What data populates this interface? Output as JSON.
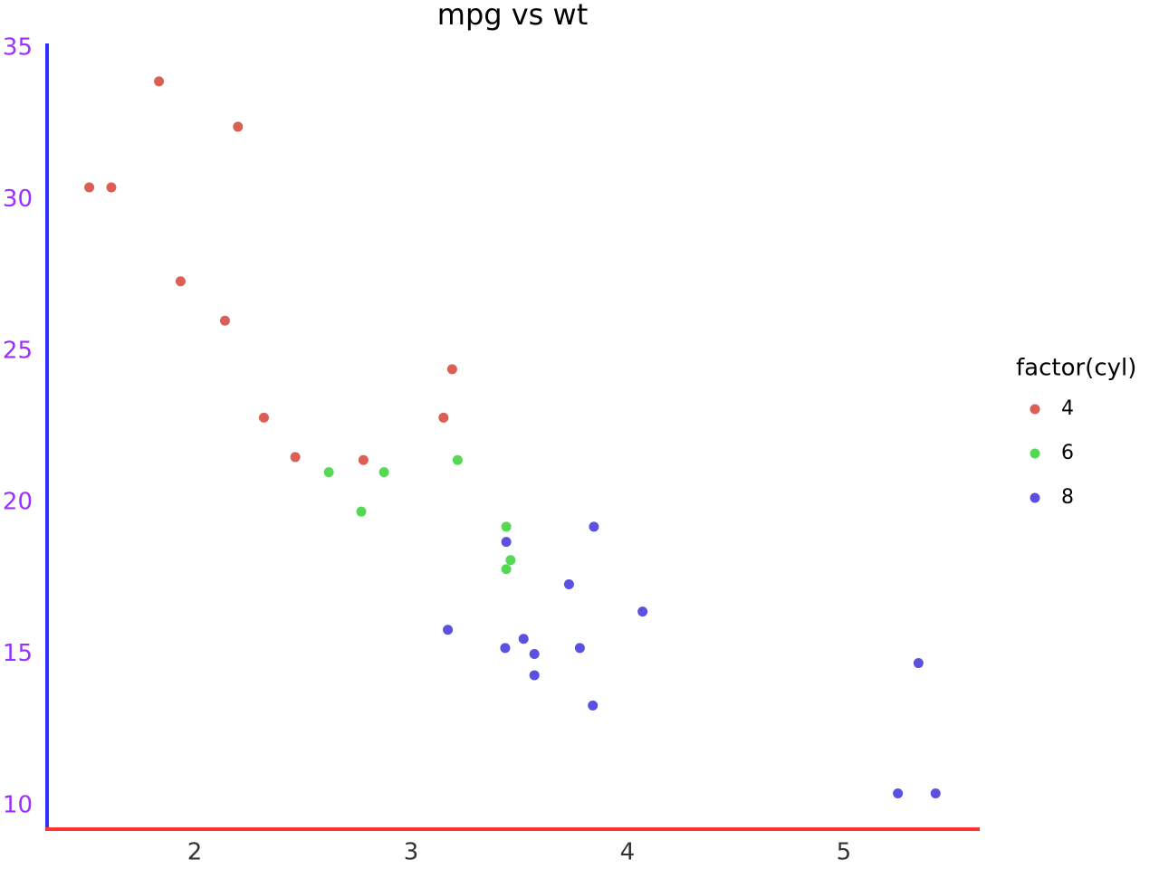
{
  "chart_data": {
    "type": "scatter",
    "title": "mpg vs wt",
    "legend_title": "factor(cyl)",
    "xlim": [
      1.318,
      5.628
    ],
    "ylim": [
      9.22,
      35.15
    ],
    "xticks": [
      2,
      3,
      4,
      5
    ],
    "yticks": [
      10,
      15,
      20,
      25,
      30,
      35
    ],
    "grid": false,
    "legend": "right",
    "series": [
      {
        "name": "4",
        "color": "#dc5f55",
        "x": [
          2.32,
          3.19,
          3.15,
          2.2,
          1.615,
          1.835,
          2.465,
          1.935,
          2.14,
          1.513,
          2.78
        ],
        "values": [
          22.8,
          24.4,
          22.8,
          32.4,
          30.4,
          33.9,
          21.5,
          27.3,
          26.0,
          30.4,
          21.4
        ]
      },
      {
        "name": "6",
        "color": "#55d955",
        "x": [
          2.62,
          2.875,
          3.215,
          3.46,
          3.44,
          3.44,
          2.77
        ],
        "values": [
          21.0,
          21.0,
          21.4,
          18.1,
          19.2,
          17.8,
          19.7
        ]
      },
      {
        "name": "8",
        "color": "#5b50e0",
        "x": [
          3.44,
          3.57,
          4.07,
          3.73,
          3.78,
          5.25,
          5.424,
          5.345,
          3.52,
          3.435,
          3.84,
          3.845,
          3.17,
          3.57
        ],
        "values": [
          18.7,
          14.3,
          16.4,
          17.3,
          15.2,
          10.4,
          10.4,
          14.7,
          15.5,
          15.2,
          13.3,
          19.2,
          15.8,
          15.0
        ]
      }
    ]
  }
}
